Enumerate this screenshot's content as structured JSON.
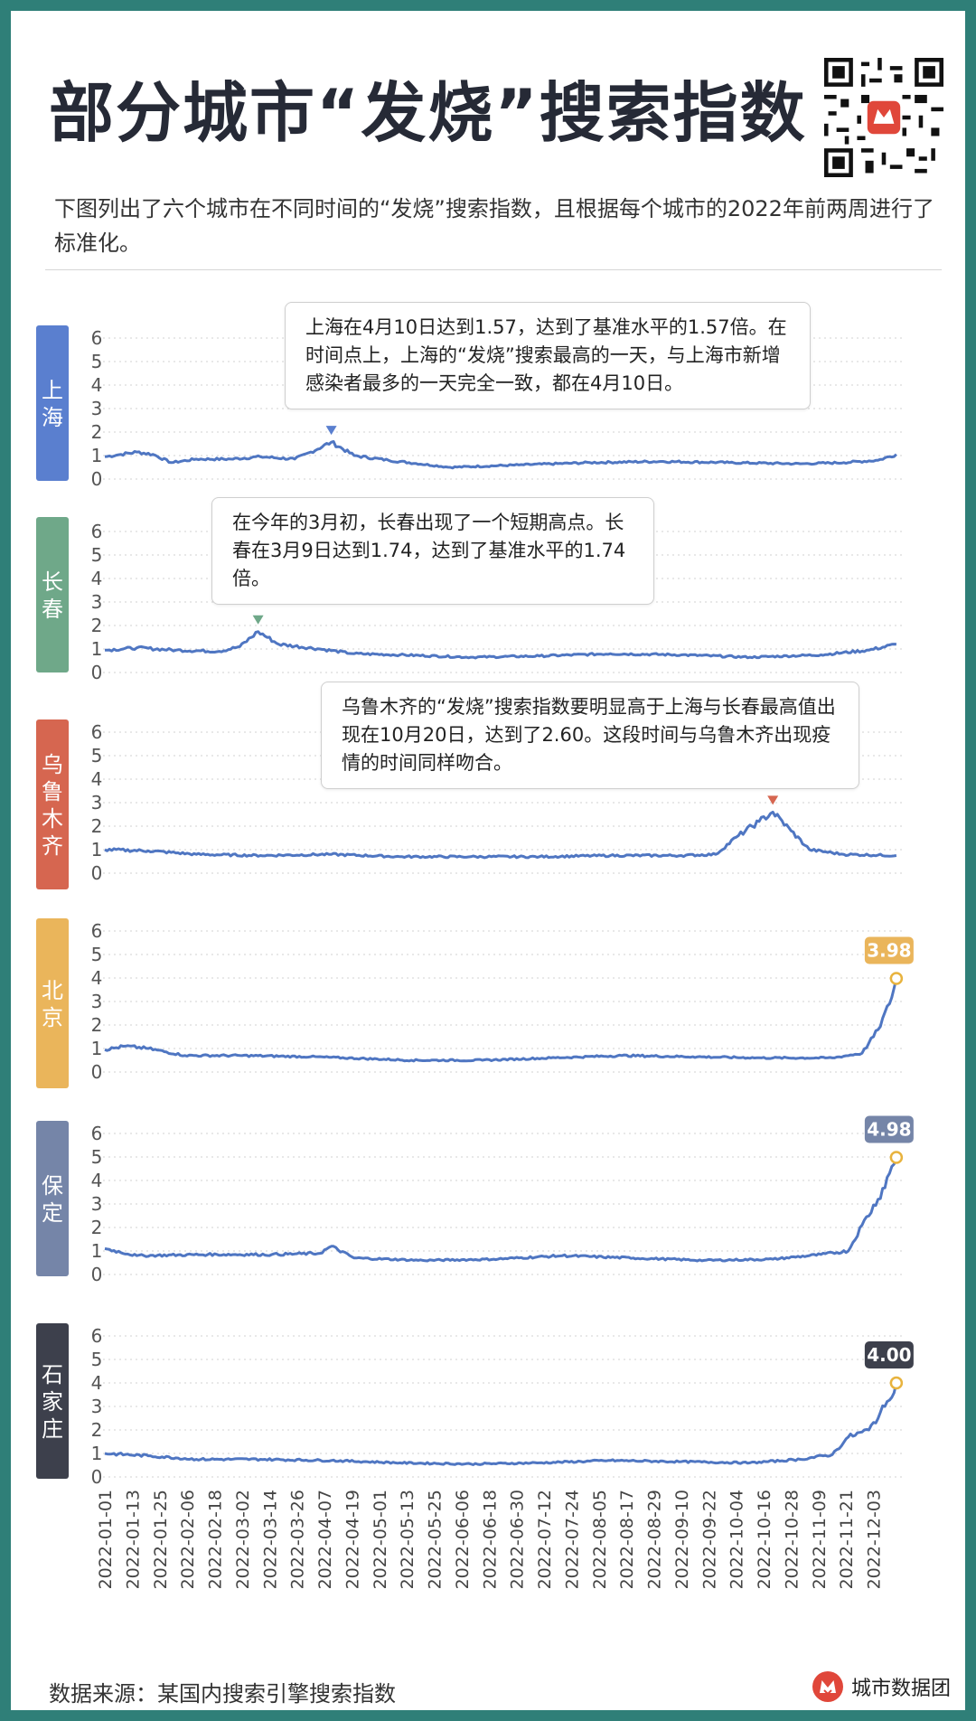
{
  "title": "部分城市“发烧”搜索指数",
  "subtitle": "下图列出了六个城市在不同时间的“发烧”搜索指数，且根据每个城市的2022年前两周进行了标准化。",
  "footer": {
    "source": "数据来源：某国内搜索引擎搜索指数",
    "brand": "城市数据团"
  },
  "colors": {
    "line": "#4f76c2",
    "background_frame": "#2f7f78",
    "marker_ring": "#e8b33e"
  },
  "callouts": {
    "shanghai": "上海在4月10日达到1.57，达到了基准水平的1.57倍。在时间点上，上海的“发烧”搜索最高的一天，与上海市新增感染者最多的一天完全一致，都在4月10日。",
    "changchun": "在今年的3月初，长春出现了一个短期高点。长春在3月9日达到1.74，达到了基准水平的1.74倍。",
    "urumqi": "乌鲁木齐的“发烧”搜索指数要明显高于上海与长春最高值出现在10月20日，达到了2.60。这段时间与乌鲁木齐出现疫情的时间同样吻合。"
  },
  "chart_data": {
    "type": "line",
    "x_axis": {
      "ticks": [
        "2022-01-01",
        "2022-01-13",
        "2022-01-25",
        "2022-02-06",
        "2022-02-18",
        "2022-03-02",
        "2022-03-14",
        "2022-03-26",
        "2022-04-07",
        "2022-04-19",
        "2022-05-01",
        "2022-05-13",
        "2022-05-25",
        "2022-06-06",
        "2022-06-18",
        "2022-06-30",
        "2022-07-12",
        "2022-07-24",
        "2022-08-05",
        "2022-08-17",
        "2022-08-29",
        "2022-09-10",
        "2022-09-22",
        "2022-10-04",
        "2022-10-16",
        "2022-10-28",
        "2022-11-09",
        "2022-11-21",
        "2022-12-03"
      ],
      "range": [
        "2022-01-01",
        "2022-12-17"
      ]
    },
    "ylim": [
      0,
      6
    ],
    "yticks": [
      0,
      1,
      2,
      3,
      4,
      5,
      6
    ],
    "panels": [
      {
        "name": "上海",
        "color": "#5a7fcf",
        "points": [
          [
            "2022-01-01",
            0.95
          ],
          [
            "2022-01-08",
            1.05
          ],
          [
            "2022-01-15",
            1.15
          ],
          [
            "2022-01-22",
            1.05
          ],
          [
            "2022-01-30",
            0.7
          ],
          [
            "2022-02-10",
            0.85
          ],
          [
            "2022-02-25",
            0.85
          ],
          [
            "2022-03-10",
            0.95
          ],
          [
            "2022-03-25",
            0.85
          ],
          [
            "2022-04-01",
            1.15
          ],
          [
            "2022-04-10",
            1.57
          ],
          [
            "2022-04-20",
            1.0
          ],
          [
            "2022-05-05",
            0.8
          ],
          [
            "2022-06-01",
            0.5
          ],
          [
            "2022-07-01",
            0.6
          ],
          [
            "2022-08-01",
            0.7
          ],
          [
            "2022-09-01",
            0.75
          ],
          [
            "2022-10-01",
            0.7
          ],
          [
            "2022-11-01",
            0.65
          ],
          [
            "2022-11-20",
            0.7
          ],
          [
            "2022-12-05",
            0.8
          ],
          [
            "2022-12-13",
            1.05
          ]
        ],
        "peak": {
          "date": "2022-04-10",
          "value": 1.57
        }
      },
      {
        "name": "长春",
        "color": "#6fa889",
        "points": [
          [
            "2022-01-01",
            0.95
          ],
          [
            "2022-01-15",
            1.05
          ],
          [
            "2022-02-01",
            0.95
          ],
          [
            "2022-02-20",
            0.9
          ],
          [
            "2022-03-01",
            1.1
          ],
          [
            "2022-03-09",
            1.74
          ],
          [
            "2022-03-18",
            1.2
          ],
          [
            "2022-04-05",
            1.0
          ],
          [
            "2022-04-20",
            0.8
          ],
          [
            "2022-05-10",
            0.75
          ],
          [
            "2022-06-10",
            0.65
          ],
          [
            "2022-07-10",
            0.7
          ],
          [
            "2022-08-10",
            0.8
          ],
          [
            "2022-09-10",
            0.75
          ],
          [
            "2022-10-10",
            0.65
          ],
          [
            "2022-11-10",
            0.75
          ],
          [
            "2022-12-01",
            0.95
          ],
          [
            "2022-12-13",
            1.2
          ]
        ],
        "peak": {
          "date": "2022-03-09",
          "value": 1.74
        }
      },
      {
        "name": "乌鲁木齐",
        "color": "#d66650",
        "points": [
          [
            "2022-01-01",
            1.0
          ],
          [
            "2022-01-20",
            0.95
          ],
          [
            "2022-02-10",
            0.8
          ],
          [
            "2022-03-10",
            0.75
          ],
          [
            "2022-04-10",
            0.8
          ],
          [
            "2022-05-10",
            0.7
          ],
          [
            "2022-06-10",
            0.7
          ],
          [
            "2022-07-10",
            0.7
          ],
          [
            "2022-08-10",
            0.75
          ],
          [
            "2022-09-10",
            0.75
          ],
          [
            "2022-09-25",
            0.8
          ],
          [
            "2022-10-05",
            1.6
          ],
          [
            "2022-10-14",
            2.2
          ],
          [
            "2022-10-20",
            2.6
          ],
          [
            "2022-10-28",
            1.8
          ],
          [
            "2022-11-05",
            1.0
          ],
          [
            "2022-11-20",
            0.8
          ],
          [
            "2022-12-13",
            0.75
          ]
        ],
        "peak": {
          "date": "2022-10-20",
          "value": 2.6
        }
      },
      {
        "name": "北京",
        "color": "#eab55b",
        "points": [
          [
            "2022-01-01",
            0.95
          ],
          [
            "2022-01-10",
            1.1
          ],
          [
            "2022-01-20",
            1.0
          ],
          [
            "2022-02-05",
            0.7
          ],
          [
            "2022-03-01",
            0.7
          ],
          [
            "2022-04-01",
            0.65
          ],
          [
            "2022-05-15",
            0.5
          ],
          [
            "2022-06-15",
            0.5
          ],
          [
            "2022-07-15",
            0.6
          ],
          [
            "2022-08-15",
            0.7
          ],
          [
            "2022-09-15",
            0.65
          ],
          [
            "2022-10-15",
            0.6
          ],
          [
            "2022-11-15",
            0.6
          ],
          [
            "2022-11-28",
            0.8
          ],
          [
            "2022-12-05",
            1.8
          ],
          [
            "2022-12-10",
            2.9
          ],
          [
            "2022-12-13",
            3.98
          ]
        ],
        "end_label": "3.98"
      },
      {
        "name": "保定",
        "color": "#7585a8",
        "points": [
          [
            "2022-01-01",
            1.1
          ],
          [
            "2022-01-15",
            0.8
          ],
          [
            "2022-02-15",
            0.85
          ],
          [
            "2022-03-15",
            0.85
          ],
          [
            "2022-04-05",
            0.9
          ],
          [
            "2022-04-10",
            1.2
          ],
          [
            "2022-04-20",
            0.7
          ],
          [
            "2022-05-20",
            0.6
          ],
          [
            "2022-06-20",
            0.65
          ],
          [
            "2022-07-20",
            0.8
          ],
          [
            "2022-08-20",
            0.7
          ],
          [
            "2022-09-20",
            0.6
          ],
          [
            "2022-10-20",
            0.65
          ],
          [
            "2022-11-10",
            0.85
          ],
          [
            "2022-11-22",
            1.0
          ],
          [
            "2022-11-28",
            2.1
          ],
          [
            "2022-12-05",
            3.2
          ],
          [
            "2022-12-10",
            4.3
          ],
          [
            "2022-12-13",
            4.98
          ]
        ],
        "end_label": "4.98"
      },
      {
        "name": "石家庄",
        "color": "#3d404c",
        "points": [
          [
            "2022-01-01",
            1.0
          ],
          [
            "2022-01-20",
            0.9
          ],
          [
            "2022-02-10",
            0.75
          ],
          [
            "2022-03-10",
            0.75
          ],
          [
            "2022-04-10",
            0.7
          ],
          [
            "2022-05-10",
            0.6
          ],
          [
            "2022-06-10",
            0.55
          ],
          [
            "2022-07-10",
            0.6
          ],
          [
            "2022-08-10",
            0.7
          ],
          [
            "2022-09-10",
            0.65
          ],
          [
            "2022-10-10",
            0.6
          ],
          [
            "2022-11-01",
            0.75
          ],
          [
            "2022-11-15",
            0.95
          ],
          [
            "2022-11-22",
            1.7
          ],
          [
            "2022-12-01",
            2.0
          ],
          [
            "2022-12-08",
            3.0
          ],
          [
            "2022-12-13",
            4.0
          ]
        ],
        "end_label": "4.00"
      }
    ]
  }
}
